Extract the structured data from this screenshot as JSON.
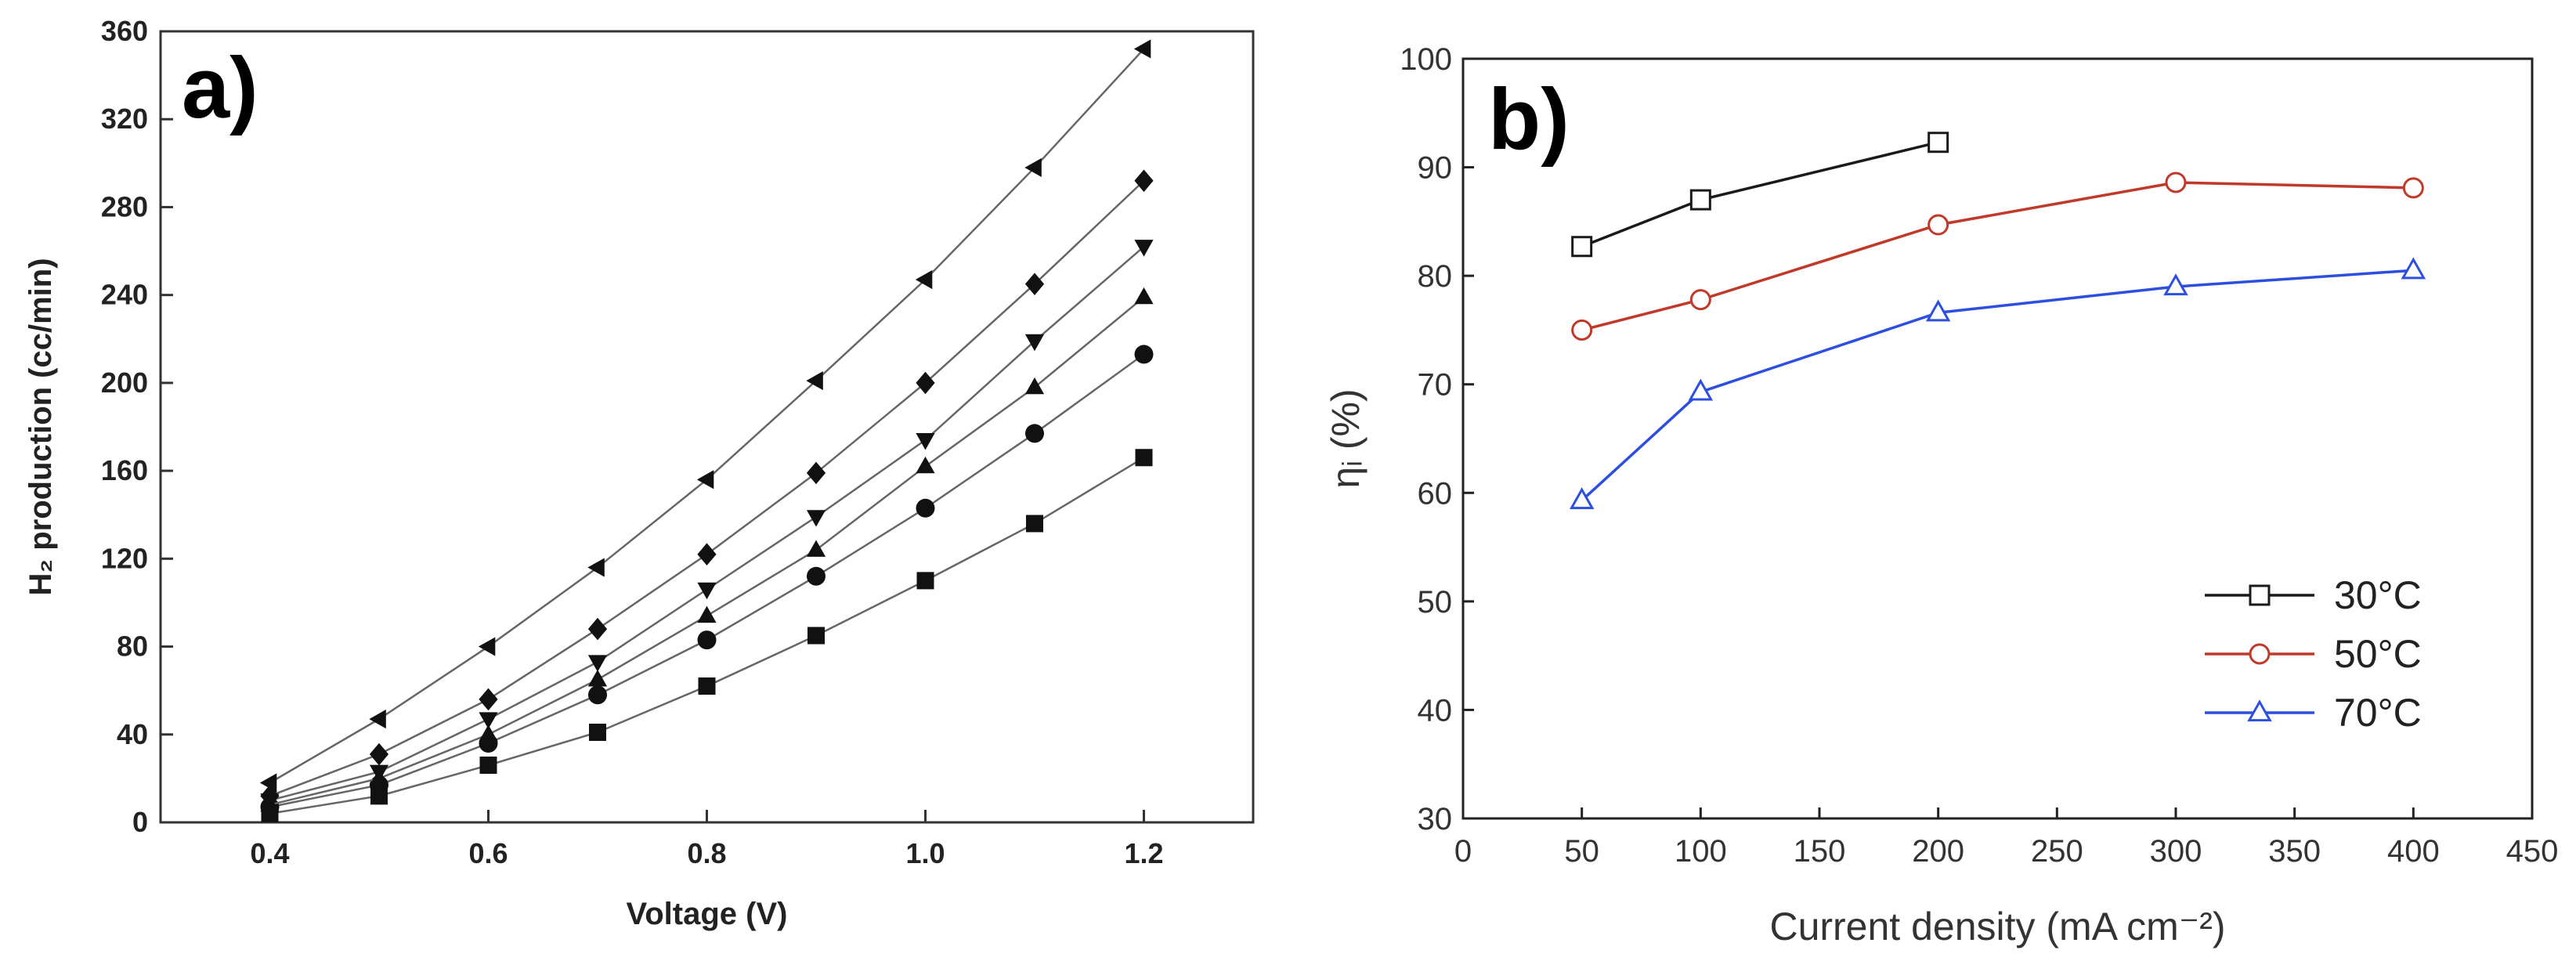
{
  "chart_data": [
    {
      "type": "line",
      "panel_label": "a)",
      "xlabel": "Voltage (V)",
      "ylabel": "H₂ production (cc/min)",
      "xlim": [
        0.3,
        1.3
      ],
      "ylim": [
        0,
        360
      ],
      "x_ticks": [
        0.4,
        0.6,
        0.8,
        1.0,
        1.2
      ],
      "x_tick_labels": [
        "0.4",
        "0.6",
        "0.8",
        "1.0",
        "1.2"
      ],
      "y_ticks": [
        0,
        40,
        80,
        120,
        160,
        200,
        240,
        280,
        320,
        360
      ],
      "y_tick_labels": [
        "0",
        "40",
        "80",
        "120",
        "160",
        "200",
        "240",
        "280",
        "320",
        "360"
      ],
      "x": [
        0.4,
        0.5,
        0.6,
        0.7,
        0.8,
        0.9,
        1.0,
        1.1,
        1.2
      ],
      "series": [
        {
          "marker": "square",
          "values": [
            4,
            12,
            26,
            41,
            62,
            85,
            110,
            136,
            166
          ]
        },
        {
          "marker": "circle",
          "values": [
            7,
            17,
            36,
            58,
            83,
            112,
            143,
            177,
            213
          ]
        },
        {
          "marker": "triangle-up",
          "values": [
            8,
            20,
            40,
            65,
            94,
            124,
            162,
            198,
            239
          ]
        },
        {
          "marker": "triangle-down",
          "values": [
            10,
            23,
            47,
            73,
            106,
            139,
            174,
            219,
            262
          ]
        },
        {
          "marker": "diamond",
          "values": [
            12,
            31,
            56,
            88,
            122,
            159,
            200,
            245,
            292
          ]
        },
        {
          "marker": "triangle-left",
          "values": [
            18,
            47,
            80,
            116,
            156,
            201,
            247,
            298,
            352
          ]
        }
      ],
      "color": "#111111",
      "grid": false,
      "legend": "none"
    },
    {
      "type": "line",
      "panel_label": "b)",
      "xlabel": "Current density (mA cm⁻²)",
      "ylabel": "ηᵢ (%)",
      "xlim": [
        0,
        450
      ],
      "ylim": [
        30,
        100
      ],
      "x_ticks": [
        0,
        50,
        100,
        150,
        200,
        250,
        300,
        350,
        400,
        450
      ],
      "x_tick_labels": [
        "0",
        "50",
        "100",
        "150",
        "200",
        "250",
        "300",
        "350",
        "400",
        "450"
      ],
      "y_ticks": [
        30,
        40,
        50,
        60,
        70,
        80,
        90,
        100
      ],
      "y_tick_labels": [
        "30",
        "40",
        "50",
        "60",
        "70",
        "80",
        "90",
        "100"
      ],
      "series": [
        {
          "name": "30°C",
          "marker": "square",
          "color": "#1a1a1a",
          "x": [
            50,
            100,
            200
          ],
          "values": [
            82.7,
            87.0,
            92.3
          ]
        },
        {
          "name": "50°C",
          "marker": "circle",
          "color": "#c0392b",
          "x": [
            50,
            100,
            200,
            300,
            400
          ],
          "values": [
            75.0,
            77.8,
            84.7,
            88.6,
            88.1
          ]
        },
        {
          "name": "70°C",
          "marker": "triangle",
          "color": "#2d4fe0",
          "x": [
            50,
            100,
            200,
            300,
            400
          ],
          "values": [
            59.3,
            69.3,
            76.6,
            79.0,
            80.5
          ]
        }
      ],
      "grid": false,
      "legend": "bottom-right"
    }
  ]
}
